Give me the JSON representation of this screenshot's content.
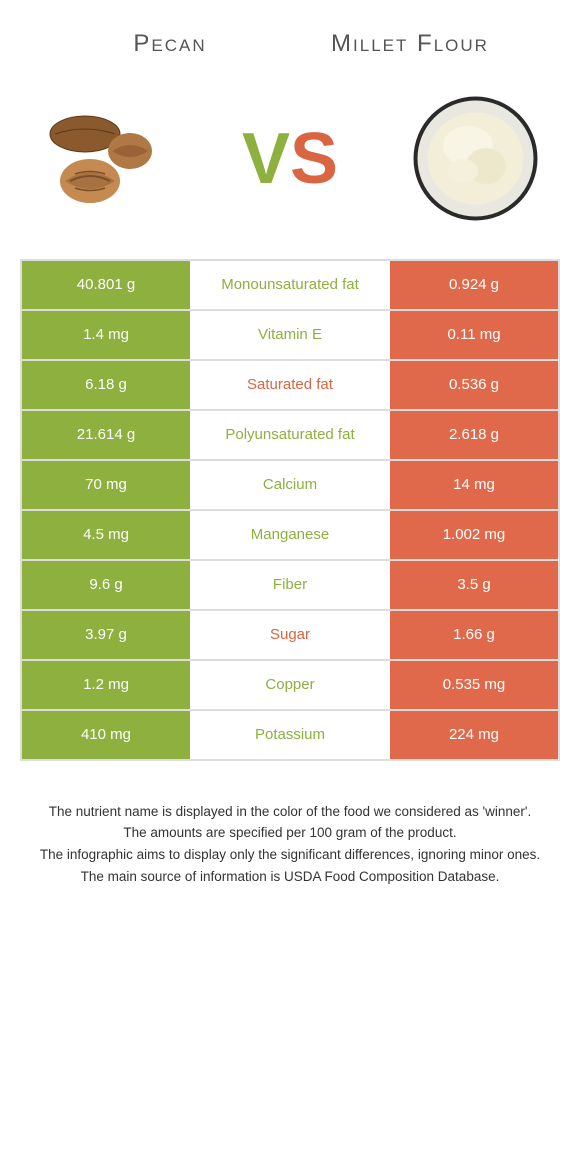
{
  "header": {
    "leftTitle": "Pecan",
    "rightTitle": "Millet Flour"
  },
  "vs": {
    "v": "V",
    "s": "S"
  },
  "colors": {
    "left": "#8db03e",
    "right": "#e1694b",
    "winnerLeft": "#8db03e",
    "winnerRight": "#d96542"
  },
  "rows": [
    {
      "left": "40.801 g",
      "label": "Monounsaturated fat",
      "right": "0.924 g",
      "winner": "left"
    },
    {
      "left": "1.4 mg",
      "label": "Vitamin E",
      "right": "0.11 mg",
      "winner": "left"
    },
    {
      "left": "6.18 g",
      "label": "Saturated fat",
      "right": "0.536 g",
      "winner": "right"
    },
    {
      "left": "21.614 g",
      "label": "Polyunsaturated fat",
      "right": "2.618 g",
      "winner": "left"
    },
    {
      "left": "70 mg",
      "label": "Calcium",
      "right": "14 mg",
      "winner": "left"
    },
    {
      "left": "4.5 mg",
      "label": "Manganese",
      "right": "1.002 mg",
      "winner": "left"
    },
    {
      "left": "9.6 g",
      "label": "Fiber",
      "right": "3.5 g",
      "winner": "left"
    },
    {
      "left": "3.97 g",
      "label": "Sugar",
      "right": "1.66 g",
      "winner": "right"
    },
    {
      "left": "1.2 mg",
      "label": "Copper",
      "right": "0.535 mg",
      "winner": "left"
    },
    {
      "left": "410 mg",
      "label": "Potassium",
      "right": "224 mg",
      "winner": "left"
    }
  ],
  "footer": {
    "line1": "The nutrient name is displayed in the color of the food we considered as 'winner'.",
    "line2": "The amounts are specified per 100 gram of the product.",
    "line3": "The infographic aims to display only the significant differences, ignoring minor ones.",
    "line4": "The main source of information is USDA Food Composition Database."
  }
}
